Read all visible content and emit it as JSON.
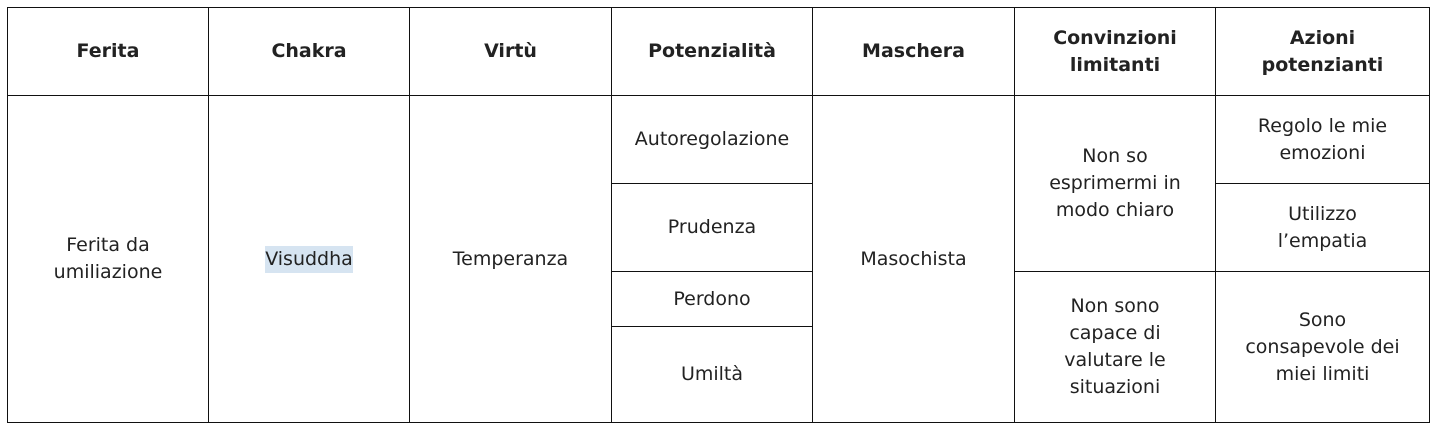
{
  "headers": [
    "Ferita",
    "Chakra",
    "Virtù",
    "Potenzialità",
    "Maschera",
    "Convinzioni limitanti",
    "Azioni potenzianti"
  ],
  "row": {
    "ferita": "Ferita da umiliazione",
    "chakra": "Visuddha",
    "virtu": "Temperanza",
    "potenzialita": [
      "Autoregolazione",
      "Prudenza",
      "Perdono",
      "Umiltà"
    ],
    "maschera": "Masochista",
    "convinzioni": [
      "Non so esprimermi in modo chiaro",
      "Non sono capace di valutare le situazioni"
    ],
    "azioni": [
      "Regolo le mie emozioni",
      "Utilizzo l’empatia",
      "Sono consapevole dei miei limiti"
    ]
  },
  "colors": {
    "highlight": "#d6e4f1",
    "border": "#111111"
  }
}
